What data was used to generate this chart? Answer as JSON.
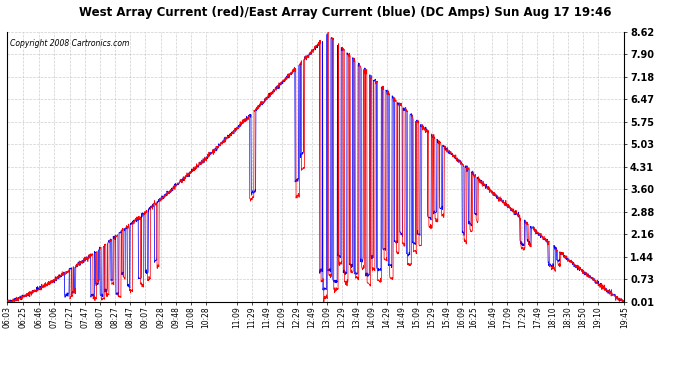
{
  "title": "West Array Current (red)/East Array Current (blue) (DC Amps) Sun Aug 17 19:46",
  "copyright": "Copyright 2008 Cartronics.com",
  "background_color": "#ffffff",
  "plot_bg_color": "#ffffff",
  "grid_color": "#bbbbbb",
  "line_color_red": "#ff0000",
  "line_color_blue": "#0000ff",
  "ylim": [
    0.01,
    8.62
  ],
  "yticks": [
    0.01,
    0.73,
    1.44,
    2.16,
    2.88,
    3.6,
    4.31,
    5.03,
    5.75,
    6.47,
    7.18,
    7.9,
    8.62
  ],
  "x_labels": [
    "06:03",
    "06:25",
    "06:46",
    "07:06",
    "07:27",
    "07:47",
    "08:07",
    "08:27",
    "08:47",
    "09:07",
    "09:28",
    "09:48",
    "10:08",
    "10:28",
    "11:09",
    "11:29",
    "11:49",
    "12:09",
    "12:29",
    "12:49",
    "13:09",
    "13:29",
    "13:49",
    "14:09",
    "14:29",
    "14:49",
    "15:09",
    "15:29",
    "15:49",
    "16:09",
    "16:25",
    "16:49",
    "17:09",
    "17:29",
    "17:49",
    "18:10",
    "18:30",
    "18:50",
    "19:10",
    "19:45"
  ],
  "start_time": "06:03",
  "end_time": "19:45"
}
